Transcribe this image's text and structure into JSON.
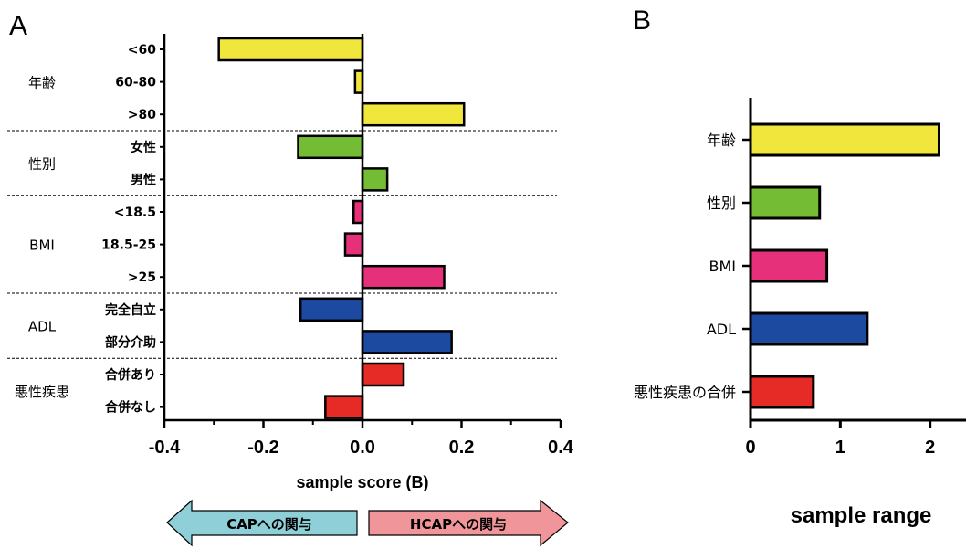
{
  "chart_data": [
    {
      "panel": "A",
      "type": "bar",
      "orientation": "horizontal",
      "xlabel": "sample score (B)",
      "xlim": [
        -0.4,
        0.4
      ],
      "xticks": [
        "-0.4",
        "-0.2",
        "0.0",
        "0.2",
        "0.4"
      ],
      "groups": [
        {
          "name": "年齢",
          "color": "#f0e63c",
          "items": [
            {
              "label": "<60",
              "value": -0.29
            },
            {
              "label": "60-80",
              "value": -0.015
            },
            {
              "label": ">80",
              "value": 0.205
            }
          ]
        },
        {
          "name": "性別",
          "color": "#74bc34",
          "items": [
            {
              "label": "女性",
              "value": -0.13
            },
            {
              "label": "男性",
              "value": 0.05
            }
          ]
        },
        {
          "name": "BMI",
          "color": "#e6307a",
          "items": [
            {
              "label": "<18.5",
              "value": -0.018
            },
            {
              "label": "18.5-25",
              "value": -0.035
            },
            {
              "label": ">25",
              "value": 0.165
            }
          ]
        },
        {
          "name": "ADL",
          "color": "#1c4aa0",
          "items": [
            {
              "label": "完全自立",
              "value": -0.125
            },
            {
              "label": "部分介助",
              "value": 0.18
            }
          ]
        },
        {
          "name": "悪性疾患",
          "color": "#e62a26",
          "items": [
            {
              "label": "合併あり",
              "value": 0.083
            },
            {
              "label": "合併なし",
              "value": -0.075
            }
          ]
        }
      ],
      "arrows": {
        "left": {
          "text": "CAPへの関与",
          "color": "#8ecfd8"
        },
        "right": {
          "text": "HCAPへの関与",
          "color": "#f0959a"
        }
      }
    },
    {
      "panel": "B",
      "type": "bar",
      "orientation": "horizontal",
      "xlabel": "sample range",
      "xlim": [
        0,
        2.4
      ],
      "xticks": [
        "0",
        "1",
        "2"
      ],
      "categories": [
        "年齢",
        "性別",
        "BMI",
        "ADL",
        "悪性疾患の合併"
      ],
      "values": [
        2.1,
        0.77,
        0.85,
        1.3,
        0.7
      ],
      "colors": [
        "#f0e63c",
        "#74bc34",
        "#e6307a",
        "#1c4aa0",
        "#e62a26"
      ]
    }
  ]
}
